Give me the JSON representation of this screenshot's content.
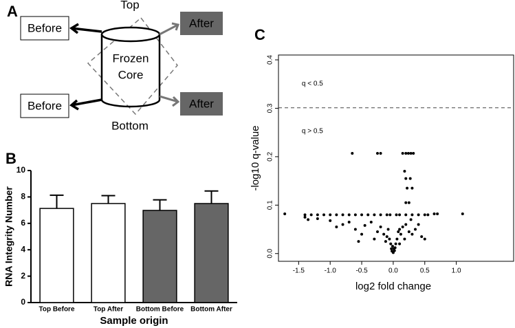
{
  "panels": {
    "a": "A",
    "b": "B",
    "c": "C"
  },
  "diagram": {
    "top": "Top",
    "bottom": "Bottom",
    "core_line1": "Frozen",
    "core_line2": "Core",
    "before_top": "Before",
    "before_bottom": "Before",
    "after_top": "After",
    "after_bottom": "After"
  },
  "chart_data": [
    {
      "type": "bar",
      "xlabel": "Sample origin",
      "ylabel": "RNA Integrity Number",
      "categories": [
        "Top Before",
        "Top After",
        "Bottom Before",
        "Bottom After"
      ],
      "values": [
        7.13,
        7.5,
        6.98,
        7.5
      ],
      "errors": [
        1.0,
        0.6,
        0.8,
        0.95
      ],
      "colors": [
        "#ffffff",
        "#ffffff",
        "#666666",
        "#666666"
      ],
      "ylim": [
        0,
        10
      ],
      "yticks": [
        0,
        2,
        4,
        6,
        8,
        10
      ]
    },
    {
      "type": "scatter",
      "xlabel": "log2 fold change",
      "ylabel": "-log10 q-value",
      "color": "#000000",
      "threshold": 0.301,
      "annotations": [
        "q < 0.5",
        "q > 0.5"
      ],
      "x": [
        -1.4,
        -1.3,
        -1.2,
        -1.1,
        -1.0,
        -0.9,
        -0.8,
        -0.7,
        -0.6,
        -0.5,
        -0.4,
        -0.3,
        -0.2,
        -0.1,
        -0.05,
        0.05,
        0.1,
        0.2,
        0.3,
        0.4,
        0.5,
        0.55,
        -1.4,
        -1.35,
        -1.2,
        -1.0,
        -0.9,
        -0.8,
        -0.7,
        -0.6,
        -0.5,
        -0.45,
        -0.3,
        -0.25,
        -0.2,
        -0.15,
        -0.1,
        -0.08,
        -0.06,
        -0.04,
        -0.03,
        -0.02,
        0,
        0.02,
        0.03,
        0.04,
        0.06,
        0.08,
        0.1,
        0.12,
        0.15,
        0.2,
        0.25,
        0.3,
        0.35,
        0.4,
        0.45,
        0.5,
        -0.55,
        0.1,
        -0.12,
        0.18,
        -0.35,
        0.28,
        -0.01,
        0.01,
        -1.72,
        1.1,
        -0.65,
        -0.25,
        -0.2,
        0.15,
        0.2,
        0.24,
        0.28,
        0.32,
        0.18,
        0.2,
        0.27,
        0.22,
        0.3,
        0.2,
        0.25,
        0.65,
        0.7
      ],
      "y": [
        0.08,
        0.08,
        0.08,
        0.08,
        0.08,
        0.08,
        0.08,
        0.08,
        0.08,
        0.08,
        0.08,
        0.08,
        0.08,
        0.08,
        0.08,
        0.08,
        0.08,
        0.08,
        0.08,
        0.08,
        0.08,
        0.08,
        0.075,
        0.07,
        0.072,
        0.068,
        0.055,
        0.06,
        0.065,
        0.05,
        0.04,
        0.058,
        0.03,
        0.045,
        0.055,
        0.04,
        0.035,
        0.05,
        0.03,
        0.02,
        0.01,
        0.005,
        0.002,
        0.006,
        0.012,
        0.02,
        0.03,
        0.045,
        0.05,
        0.04,
        0.055,
        0.06,
        0.045,
        0.04,
        0.05,
        0.06,
        0.035,
        0.03,
        0.025,
        0.02,
        0.025,
        0.03,
        0.065,
        0.07,
        0.015,
        0.01,
        0.082,
        0.082,
        0.207,
        0.207,
        0.207,
        0.207,
        0.207,
        0.207,
        0.207,
        0.207,
        0.17,
        0.155,
        0.155,
        0.135,
        0.135,
        0.105,
        0.105,
        0.082,
        0.082
      ],
      "xlim": [
        -1.82,
        1.92
      ],
      "ylim": [
        -0.016,
        0.41
      ],
      "xticks": [
        -1.5,
        {
          "value": -1.0,
          "label": "-1.0"
        },
        -0.5,
        {
          "value": 0.0,
          "label": "0.0"
        },
        0.5,
        {
          "value": 1.0,
          "label": "1.0"
        }
      ],
      "yticks": [
        {
          "value": 0.0,
          "label": "0.0"
        },
        0.1,
        0.2,
        0.3,
        0.4
      ]
    }
  ]
}
